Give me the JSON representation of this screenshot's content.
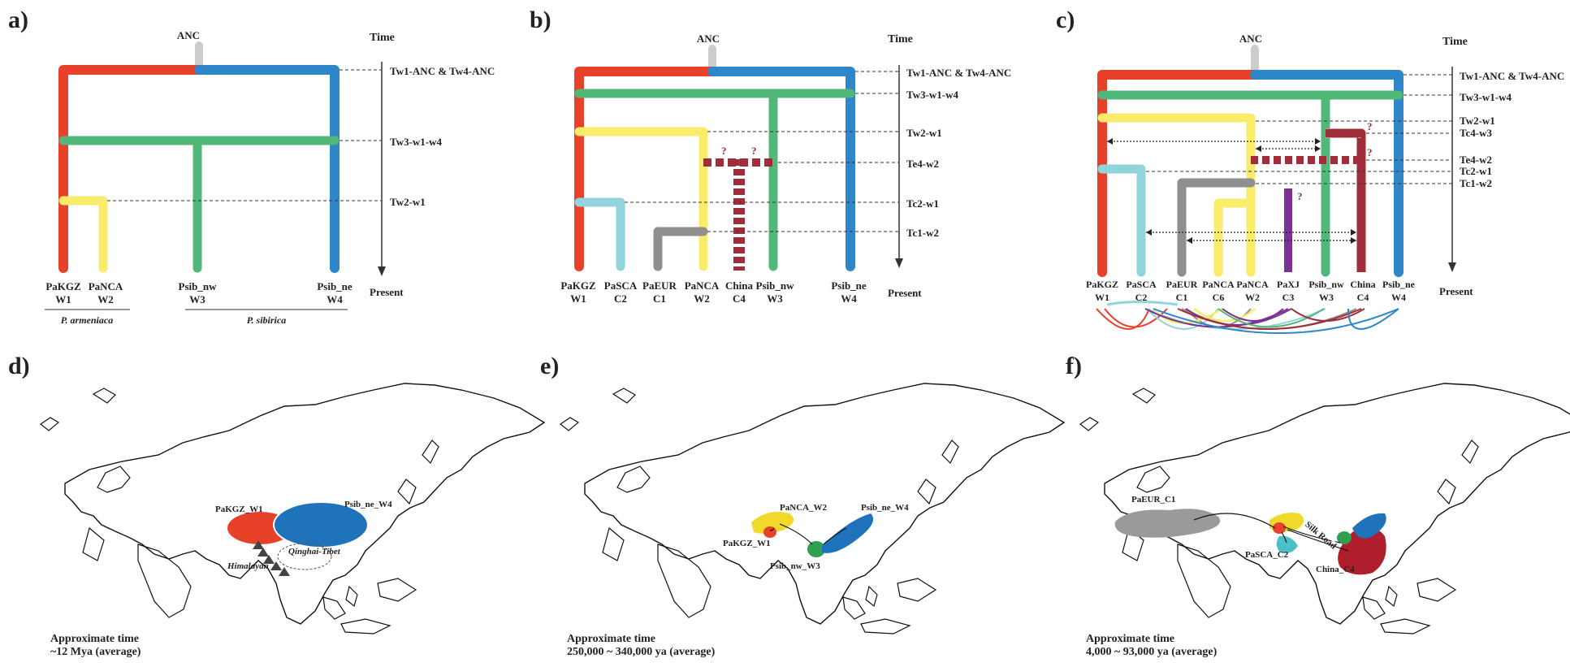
{
  "panels": {
    "a": {
      "label": "a)",
      "anc": "ANC",
      "time_header": "Time",
      "present": "Present",
      "time_labels": [
        "Tw1-ANC & Tw4-ANC",
        "Tw3-w1-w4",
        "Tw2-w1"
      ],
      "tips": [
        {
          "name": "PaKGZ",
          "code": "W1"
        },
        {
          "name": "PaNCA",
          "code": "W2"
        },
        {
          "name": "Psib_nw",
          "code": "W3"
        },
        {
          "name": "Psib_ne",
          "code": "W4"
        }
      ],
      "species": [
        "P. armeniaca",
        "P. sibirica"
      ]
    },
    "b": {
      "label": "b)",
      "anc": "ANC",
      "time_header": "Time",
      "present": "Present",
      "time_labels": [
        "Tw1-ANC & Tw4-ANC",
        "Tw3-w1-w4",
        "Tw2-w1",
        "Te4-w2",
        "Tc2-w1",
        "Tc1-w2"
      ],
      "tips": [
        {
          "name": "PaKGZ",
          "code": "W1"
        },
        {
          "name": "PaSCA",
          "code": "C2"
        },
        {
          "name": "PaEUR",
          "code": "C1"
        },
        {
          "name": "PaNCA",
          "code": "W2"
        },
        {
          "name": "China",
          "code": "C4"
        },
        {
          "name": "Psib_nw",
          "code": "W3"
        },
        {
          "name": "Psib_ne",
          "code": "W4"
        }
      ],
      "question": "?"
    },
    "c": {
      "label": "c)",
      "anc": "ANC",
      "time_header": "Time",
      "present": "Present",
      "time_labels": [
        "Tw1-ANC & Tw4-ANC",
        "Tw3-w1-w4",
        "Tw2-w1",
        "Tc4-w3",
        "Te4-w2",
        "Tc2-w1",
        "Tc1-w2"
      ],
      "tips": [
        {
          "name": "PaKGZ",
          "code": "W1"
        },
        {
          "name": "PaSCA",
          "code": "C2"
        },
        {
          "name": "PaEUR",
          "code": "C1"
        },
        {
          "name": "PaNCA",
          "code": "C6"
        },
        {
          "name": "PaNCA",
          "code": "W2"
        },
        {
          "name": "PaXJ",
          "code": "C3"
        },
        {
          "name": "Psib_nw",
          "code": "W3"
        },
        {
          "name": "China",
          "code": "C4"
        },
        {
          "name": "Psib_ne",
          "code": "W4"
        }
      ],
      "question": "?"
    },
    "d": {
      "label": "d)",
      "labels": [
        "PaKGZ_W1",
        "Psib_ne_W4",
        "Himalayan",
        "Qinghai-Tibet"
      ],
      "time_title": "Approximate time",
      "time_value": "~12 Mya (average)"
    },
    "e": {
      "label": "e)",
      "labels": [
        "PaNCA_W2",
        "Psib_ne_W4",
        "PaKGZ_W1",
        "Psib_nw_W3"
      ],
      "time_title": "Approximate time",
      "time_value": "250,000 ~ 340,000 ya (average)"
    },
    "f": {
      "label": "f)",
      "labels": [
        "PaEUR_C1",
        "PaSCA_C2",
        "China_C4",
        "Silk Road"
      ],
      "time_title": "Approximate time",
      "time_value": "4,000 ~ 93,000 ya (average)"
    }
  },
  "colors": {
    "red": "#e8412a",
    "blue": "#2f86c8",
    "green": "#52b87a",
    "yellow": "#f8ec6a",
    "cyan": "#92d4dc",
    "gray": "#8f8f8f",
    "maroon": "#a02e3a",
    "purple": "#7b3294",
    "anc": "#cccccc",
    "map_gray": "#9a9a9a"
  }
}
